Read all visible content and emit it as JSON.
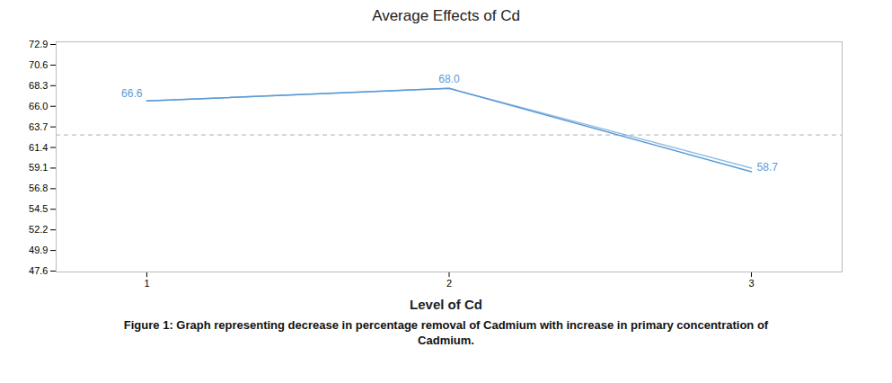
{
  "chart_data": {
    "type": "line",
    "title": "Average Effects of Cd",
    "xlabel": "Level of Cd",
    "x": [
      1,
      2,
      3
    ],
    "series": [
      {
        "color": "#5B9BD5",
        "values": [
          66.6,
          68.0,
          58.7
        ]
      },
      {
        "color": "#5B9BD5",
        "values": [
          66.6,
          68.0,
          59.1
        ]
      }
    ],
    "reference_line": {
      "y": 62.8,
      "color": "#b0b0b0",
      "line_style": "dashed"
    },
    "annotations": [
      {
        "x": 1,
        "y": 66.6,
        "text": "66.6"
      },
      {
        "x": 2,
        "y": 68.0,
        "text": "68.0"
      },
      {
        "x": 3,
        "y": 58.7,
        "text": "58.7"
      }
    ],
    "xlim": [
      0.7,
      3.3
    ],
    "xticks": [
      1,
      2,
      3
    ],
    "ylim": [
      47.5,
      73.2
    ],
    "yticks": [
      47.6,
      49.9,
      52.2,
      54.5,
      56.8,
      59.1,
      61.4,
      63.7,
      {
        "value": 66.0,
        "label": "66.0"
      },
      68.3,
      70.6,
      72.9
    ],
    "grid": false,
    "caption": [
      "Figure 1: Graph representing decrease in percentage removal of Cadmium with increase in primary concentration of",
      "Cadmium."
    ]
  }
}
